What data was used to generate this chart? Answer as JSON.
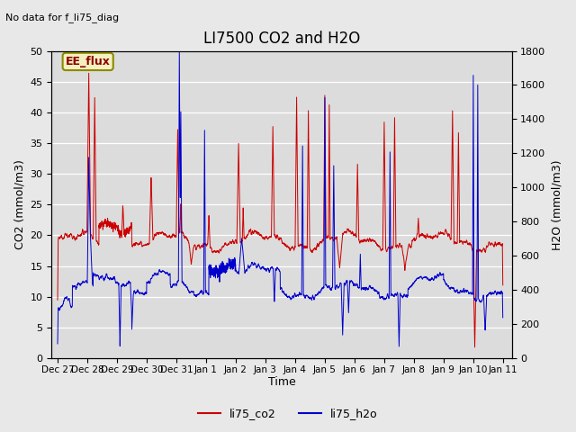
{
  "title": "LI7500 CO2 and H2O",
  "top_left_text": "No data for f_li75_diag",
  "annotation_box": "EE_flux",
  "xlabel": "Time",
  "ylabel_left": "CO2 (mmol/m3)",
  "ylabel_right": "H2O (mmol/m3)",
  "ylim_left": [
    0,
    50
  ],
  "ylim_right": [
    0,
    1800
  ],
  "yticks_left": [
    0,
    5,
    10,
    15,
    20,
    25,
    30,
    35,
    40,
    45,
    50
  ],
  "yticks_right": [
    0,
    200,
    400,
    600,
    800,
    1000,
    1200,
    1400,
    1600,
    1800
  ],
  "xtick_labels": [
    "Dec 27",
    "Dec 28",
    "Dec 29",
    "Dec 30",
    "Dec 31",
    "Jan 1",
    "Jan 2",
    "Jan 3",
    "Jan 4",
    "Jan 5",
    "Jan 6",
    "Jan 7",
    "Jan 8",
    "Jan 9",
    "Jan 10",
    "Jan 11"
  ],
  "legend_labels": [
    "li75_co2",
    "li75_h2o"
  ],
  "legend_colors": [
    "#cc0000",
    "#0000cc"
  ],
  "co2_color": "#cc0000",
  "h2o_color": "#0000cc",
  "background_color": "#e8e8e8",
  "plot_bg_color": "#dcdcdc",
  "grid_color": "#ffffff",
  "title_fontsize": 12,
  "label_fontsize": 9,
  "tick_fontsize": 8
}
